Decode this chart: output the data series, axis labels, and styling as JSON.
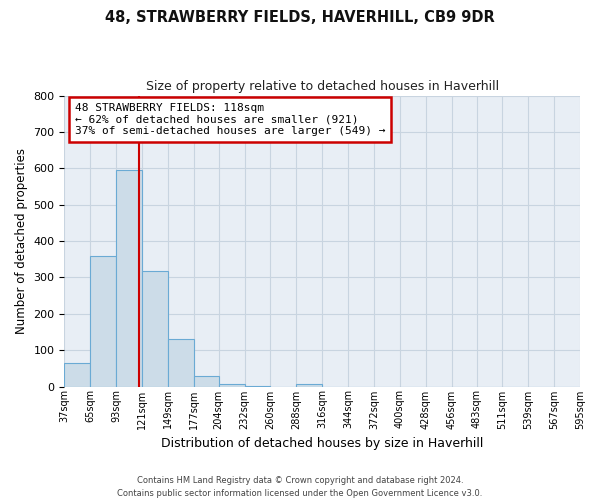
{
  "title": "48, STRAWBERRY FIELDS, HAVERHILL, CB9 9DR",
  "subtitle": "Size of property relative to detached houses in Haverhill",
  "xlabel": "Distribution of detached houses by size in Haverhill",
  "ylabel": "Number of detached properties",
  "bin_edges": [
    37,
    65,
    93,
    121,
    149,
    177,
    204,
    232,
    260,
    288,
    316,
    344,
    372,
    400,
    428,
    456,
    483,
    511,
    539,
    567,
    595
  ],
  "bar_heights": [
    65,
    358,
    595,
    318,
    130,
    30,
    8,
    2,
    0,
    8,
    0,
    0,
    0,
    0,
    0,
    0,
    0,
    0,
    0,
    0
  ],
  "bar_color": "#ccdce8",
  "bar_edgecolor": "#6aaad4",
  "property_size": 118,
  "vline_color": "#cc0000",
  "annotation_line1": "48 STRAWBERRY FIELDS: 118sqm",
  "annotation_line2": "← 62% of detached houses are smaller (921)",
  "annotation_line3": "37% of semi-detached houses are larger (549) →",
  "annotation_box_color": "#ffffff",
  "annotation_box_edgecolor": "#cc0000",
  "ylim": [
    0,
    800
  ],
  "yticks": [
    0,
    100,
    200,
    300,
    400,
    500,
    600,
    700,
    800
  ],
  "axes_bg_color": "#e8eef5",
  "background_color": "#ffffff",
  "grid_color": "#c8d4e0",
  "footer_line1": "Contains HM Land Registry data © Crown copyright and database right 2024.",
  "footer_line2": "Contains public sector information licensed under the Open Government Licence v3.0."
}
